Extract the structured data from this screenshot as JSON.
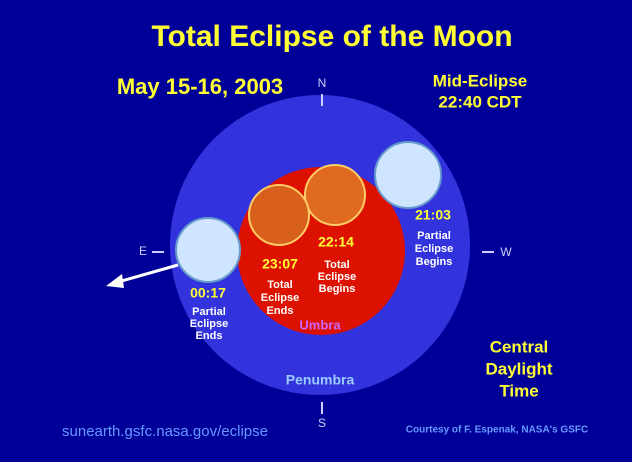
{
  "title": "Total Eclipse of the Moon",
  "date": "May 15-16, 2003",
  "mid_eclipse": {
    "label": "Mid-Eclipse",
    "time": "22:40 CDT"
  },
  "directions": {
    "n": "N",
    "s": "S",
    "e": "E",
    "w": "W"
  },
  "events": [
    {
      "time": "21:03",
      "label": [
        "Partial",
        "Eclipse",
        "Begins"
      ]
    },
    {
      "time": "22:14",
      "label": [
        "Total",
        "Eclipse",
        "Begins"
      ]
    },
    {
      "time": "23:07",
      "label": [
        "Total",
        "Eclipse",
        "Ends"
      ]
    },
    {
      "time": "00:17",
      "label": [
        "Partial",
        "Eclipse",
        "Ends"
      ]
    }
  ],
  "regions": {
    "umbra": "Umbra",
    "penumbra": "Penumbra"
  },
  "time_zone": [
    "Central",
    "Daylight",
    "Time"
  ],
  "url": "sunearth.gsfc.nasa.gov/eclipse",
  "credit": "Courtesy of F. Espenak, NASA's GSFC"
}
